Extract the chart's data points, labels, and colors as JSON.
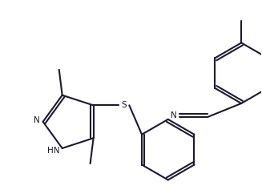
{
  "line_color": "#1a1a2e",
  "line_width": 1.5,
  "bg_color": "#ffffff",
  "figsize": [
    3.27,
    2.42
  ],
  "dpi": 100,
  "xlim": [
    0,
    327
  ],
  "ylim": [
    0,
    242
  ]
}
